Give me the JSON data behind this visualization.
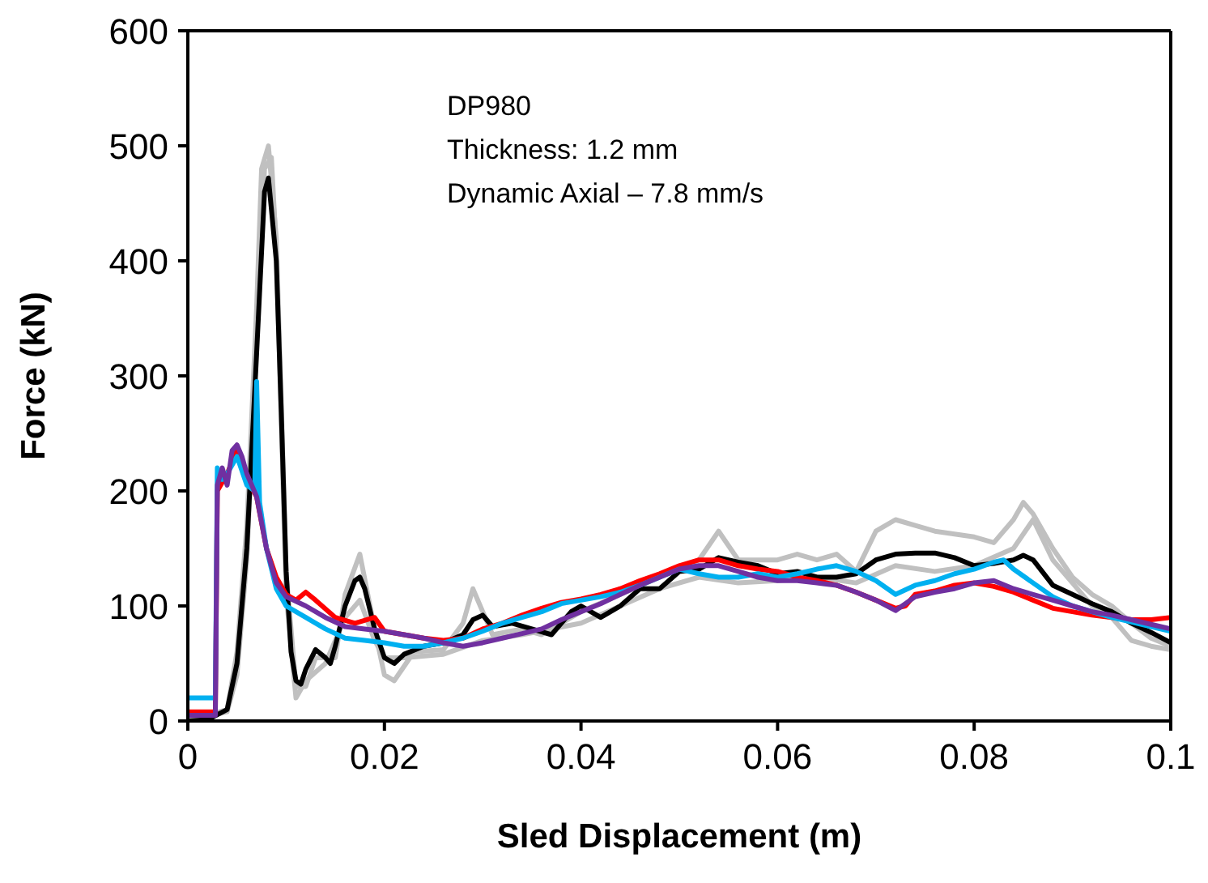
{
  "chart_data": {
    "type": "line",
    "xlabel": "Sled Displacement (m)",
    "ylabel": "Force (kN)",
    "xlim": [
      0,
      0.1
    ],
    "ylim": [
      0,
      600
    ],
    "xticks": [
      0,
      0.02,
      0.04,
      0.06,
      0.08,
      0.1
    ],
    "yticks": [
      0,
      100,
      200,
      300,
      400,
      500,
      600
    ],
    "marker": "none",
    "line_style": "solid",
    "annotations": [
      "DP980",
      "Thickness: 1.2 mm",
      "Dynamic Axial – 7.8 mm/s"
    ],
    "series": [
      {
        "color": "#c0c0c0",
        "x": [
          0,
          0.004,
          0.005,
          0.006,
          0.007,
          0.0075,
          0.0082,
          0.009,
          0.0095,
          0.01,
          0.011,
          0.012,
          0.013,
          0.015,
          0.016,
          0.0175,
          0.019,
          0.02,
          0.021,
          0.023,
          0.026,
          0.028,
          0.029,
          0.031,
          0.034,
          0.036,
          0.04,
          0.044,
          0.048,
          0.052,
          0.054,
          0.056,
          0.06,
          0.062,
          0.064,
          0.066,
          0.068,
          0.07,
          0.072,
          0.074,
          0.076,
          0.08,
          0.082,
          0.084,
          0.085,
          0.086,
          0.088,
          0.09,
          0.092,
          0.094,
          0.096,
          0.098,
          0.1
        ],
        "values": [
          0,
          10,
          60,
          170,
          360,
          480,
          500,
          420,
          280,
          130,
          30,
          30,
          55,
          55,
          110,
          145,
          80,
          40,
          35,
          60,
          62,
          85,
          115,
          75,
          80,
          75,
          95,
          110,
          125,
          140,
          165,
          140,
          140,
          145,
          140,
          145,
          130,
          165,
          175,
          170,
          165,
          160,
          155,
          175,
          190,
          180,
          150,
          125,
          110,
          100,
          85,
          72,
          65
        ]
      },
      {
        "color": "#c0c0c0",
        "x": [
          0,
          0.004,
          0.005,
          0.006,
          0.007,
          0.0078,
          0.0085,
          0.009,
          0.01,
          0.011,
          0.012,
          0.014,
          0.016,
          0.0175,
          0.019,
          0.02,
          0.022,
          0.026,
          0.03,
          0.034,
          0.04,
          0.044,
          0.048,
          0.052,
          0.056,
          0.06,
          0.064,
          0.068,
          0.072,
          0.076,
          0.08,
          0.084,
          0.086,
          0.088,
          0.09,
          0.092,
          0.094,
          0.096,
          0.098,
          0.1
        ],
        "values": [
          0,
          8,
          40,
          140,
          330,
          480,
          490,
          410,
          110,
          20,
          35,
          50,
          90,
          105,
          70,
          55,
          55,
          58,
          70,
          75,
          85,
          100,
          115,
          125,
          120,
          122,
          125,
          120,
          135,
          130,
          135,
          150,
          175,
          140,
          120,
          100,
          90,
          70,
          65,
          62
        ]
      },
      {
        "color": "#000000",
        "x": [
          0,
          0.002,
          0.004,
          0.005,
          0.006,
          0.007,
          0.0078,
          0.0082,
          0.009,
          0.0095,
          0.01,
          0.0105,
          0.011,
          0.0115,
          0.012,
          0.013,
          0.014,
          0.0145,
          0.015,
          0.016,
          0.017,
          0.0175,
          0.018,
          0.019,
          0.02,
          0.021,
          0.022,
          0.024,
          0.026,
          0.028,
          0.029,
          0.03,
          0.031,
          0.033,
          0.035,
          0.037,
          0.039,
          0.04,
          0.042,
          0.044,
          0.046,
          0.048,
          0.05,
          0.052,
          0.054,
          0.056,
          0.058,
          0.06,
          0.062,
          0.064,
          0.066,
          0.068,
          0.07,
          0.072,
          0.074,
          0.076,
          0.078,
          0.08,
          0.082,
          0.084,
          0.085,
          0.086,
          0.088,
          0.09,
          0.092,
          0.094,
          0.096,
          0.098,
          0.1
        ],
        "values": [
          0,
          1,
          10,
          50,
          150,
          320,
          460,
          472,
          400,
          270,
          130,
          60,
          35,
          32,
          45,
          62,
          55,
          50,
          65,
          100,
          122,
          125,
          115,
          80,
          55,
          50,
          58,
          65,
          68,
          75,
          88,
          92,
          82,
          85,
          80,
          75,
          95,
          100,
          90,
          100,
          115,
          115,
          130,
          132,
          142,
          138,
          135,
          128,
          130,
          125,
          125,
          128,
          140,
          145,
          146,
          146,
          142,
          135,
          137,
          140,
          144,
          140,
          118,
          110,
          102,
          95,
          85,
          77,
          68
        ]
      },
      {
        "color": "#ff0000",
        "x": [
          0,
          0.0028,
          0.003,
          0.004,
          0.005,
          0.006,
          0.007,
          0.008,
          0.009,
          0.01,
          0.011,
          0.012,
          0.013,
          0.015,
          0.017,
          0.019,
          0.02,
          0.022,
          0.024,
          0.026,
          0.028,
          0.03,
          0.032,
          0.034,
          0.036,
          0.038,
          0.04,
          0.042,
          0.044,
          0.046,
          0.048,
          0.05,
          0.052,
          0.054,
          0.056,
          0.058,
          0.06,
          0.062,
          0.064,
          0.066,
          0.068,
          0.07,
          0.072,
          0.073,
          0.074,
          0.076,
          0.078,
          0.08,
          0.082,
          0.084,
          0.086,
          0.088,
          0.09,
          0.092,
          0.094,
          0.096,
          0.098,
          0.1
        ],
        "values": [
          8,
          8,
          200,
          215,
          235,
          210,
          195,
          150,
          125,
          110,
          105,
          112,
          105,
          90,
          85,
          90,
          78,
          75,
          72,
          70,
          72,
          80,
          85,
          92,
          98,
          103,
          106,
          110,
          115,
          122,
          128,
          135,
          140,
          140,
          135,
          132,
          130,
          125,
          122,
          118,
          112,
          105,
          98,
          100,
          110,
          113,
          118,
          120,
          117,
          112,
          105,
          98,
          95,
          92,
          90,
          88,
          88,
          90
        ]
      },
      {
        "color": "#00b0f0",
        "x": [
          0,
          0.0028,
          0.003,
          0.0035,
          0.004,
          0.005,
          0.006,
          0.0068,
          0.007,
          0.0073,
          0.008,
          0.009,
          0.01,
          0.012,
          0.014,
          0.016,
          0.018,
          0.02,
          0.022,
          0.024,
          0.026,
          0.028,
          0.03,
          0.032,
          0.034,
          0.036,
          0.038,
          0.04,
          0.042,
          0.044,
          0.046,
          0.048,
          0.05,
          0.052,
          0.054,
          0.056,
          0.058,
          0.06,
          0.062,
          0.064,
          0.066,
          0.068,
          0.07,
          0.072,
          0.074,
          0.076,
          0.078,
          0.08,
          0.082,
          0.083,
          0.084,
          0.086,
          0.088,
          0.09,
          0.092,
          0.094,
          0.096,
          0.098,
          0.1
        ],
        "values": [
          20,
          20,
          220,
          210,
          215,
          230,
          205,
          200,
          295,
          190,
          150,
          115,
          100,
          90,
          80,
          72,
          70,
          68,
          65,
          65,
          68,
          72,
          78,
          85,
          90,
          95,
          102,
          105,
          108,
          112,
          118,
          125,
          132,
          128,
          125,
          125,
          128,
          125,
          128,
          132,
          135,
          130,
          122,
          110,
          118,
          122,
          128,
          132,
          138,
          140,
          132,
          120,
          108,
          100,
          95,
          90,
          86,
          82,
          78
        ]
      },
      {
        "color": "#7030a0",
        "x": [
          0,
          0.0028,
          0.003,
          0.0035,
          0.004,
          0.0045,
          0.005,
          0.0055,
          0.006,
          0.007,
          0.008,
          0.009,
          0.01,
          0.012,
          0.014,
          0.016,
          0.018,
          0.02,
          0.022,
          0.024,
          0.026,
          0.028,
          0.03,
          0.032,
          0.034,
          0.036,
          0.038,
          0.04,
          0.042,
          0.044,
          0.046,
          0.048,
          0.05,
          0.052,
          0.054,
          0.056,
          0.058,
          0.06,
          0.062,
          0.064,
          0.066,
          0.068,
          0.07,
          0.072,
          0.074,
          0.076,
          0.078,
          0.08,
          0.082,
          0.084,
          0.086,
          0.088,
          0.09,
          0.092,
          0.094,
          0.096,
          0.098,
          0.1
        ],
        "values": [
          5,
          5,
          205,
          220,
          205,
          235,
          240,
          230,
          215,
          195,
          150,
          120,
          108,
          100,
          90,
          82,
          80,
          78,
          75,
          72,
          68,
          65,
          68,
          72,
          76,
          80,
          88,
          95,
          102,
          110,
          118,
          125,
          132,
          135,
          135,
          130,
          125,
          122,
          122,
          120,
          118,
          112,
          105,
          96,
          108,
          112,
          115,
          120,
          122,
          115,
          110,
          105,
          100,
          95,
          92,
          88,
          84,
          80
        ]
      }
    ]
  }
}
